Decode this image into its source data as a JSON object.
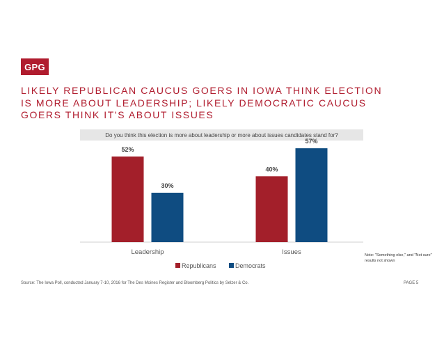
{
  "logo": "GPG",
  "title_lines": [
    "LIKELY REPUBLICAN CAUCUS GOERS IN IOWA THINK ELECTION",
    "IS MORE ABOUT LEADERSHIP; LIKELY DEMOCRATIC CAUCUS",
    "GOERS THINK IT'S ABOUT ISSUES"
  ],
  "question": "Do you think this election is more about leadership or more about issues candidates stand for?",
  "note": "Note: \"Something else,\" and \"Not sure\" results not shown",
  "source": "Source: The Iowa Poll, conducted January 7-10, 2016 for The Des Moines Register and Bloomberg Politics by Selzer & Co.",
  "page_label": "PAGE 5",
  "colors": {
    "republicans": "#a31f2a",
    "democrats": "#0f4c81",
    "accent": "#b01c2e"
  },
  "chart_data": {
    "type": "bar",
    "categories": [
      "Leadership",
      "Issues"
    ],
    "series": [
      {
        "name": "Republicans",
        "values": [
          52,
          40
        ],
        "labels": [
          "52%",
          "40%"
        ]
      },
      {
        "name": "Democrats",
        "values": [
          30,
          57
        ],
        "labels": [
          "30%",
          "57%"
        ]
      }
    ],
    "ylim": [
      0,
      60
    ],
    "legend": "bottom-center",
    "grid": false
  }
}
